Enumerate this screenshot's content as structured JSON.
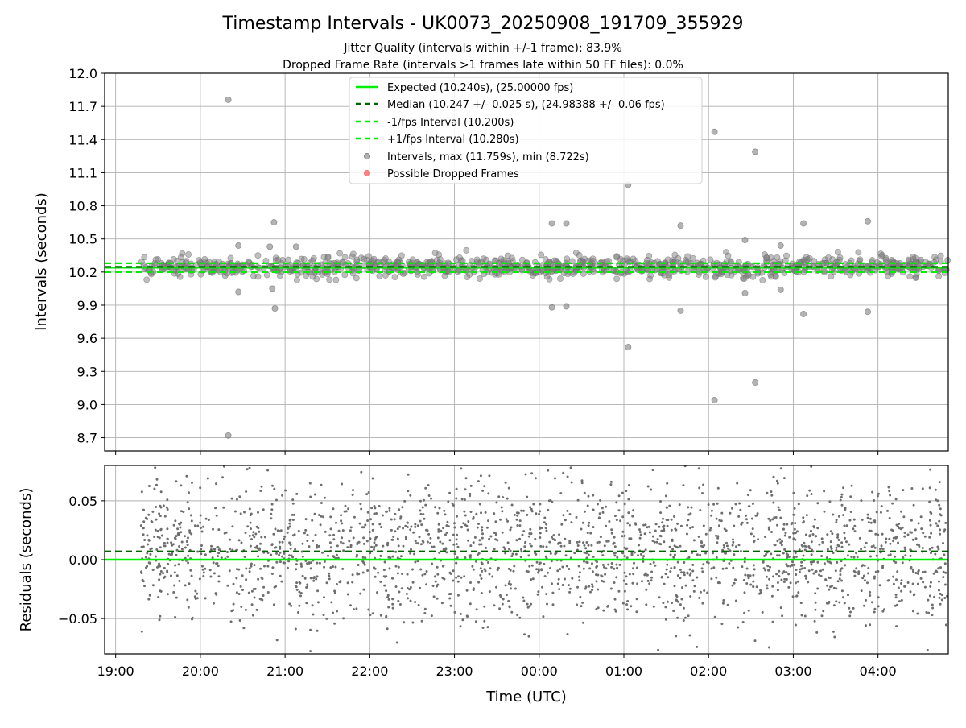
{
  "figure": {
    "title": "Timestamp Intervals - UK0073_20250908_191709_355929",
    "subtitle_1": "Jitter Quality (intervals within +/-1 frame): 83.9%",
    "subtitle_2": "Dropped Frame Rate (intervals >1 frames late within 50 FF files): 0.0%"
  },
  "colors": {
    "expected": "#00ee00",
    "median": "#006400",
    "bounds": "#00ee00",
    "intervals": "#808080",
    "dropped": "#ff4d4d",
    "grid": "#b0b0b0"
  },
  "chart_data": [
    {
      "type": "scatter",
      "panel": "top",
      "ylabel": "Intervals (seconds)",
      "ylim": [
        8.58,
        12.0
      ],
      "xlim_hours": [
        18.87,
        28.83
      ],
      "yticks": [
        "8.7",
        "9.0",
        "9.3",
        "9.6",
        "9.9",
        "10.2",
        "10.5",
        "10.8",
        "11.1",
        "11.4",
        "11.7",
        "12.0"
      ],
      "grid": true,
      "legend_position": "top-center",
      "legend": [
        {
          "label": "Expected (10.240s), (25.00000 fps)",
          "style": "solid",
          "color": "#00ee00"
        },
        {
          "label": "Median (10.247 +/- 0.025 s), (24.98388 +/- 0.06 fps)",
          "style": "dashed",
          "color": "#006400"
        },
        {
          "label": "-1/fps Interval (10.200s)",
          "style": "dashed",
          "color": "#00ee00"
        },
        {
          "label": "+1/fps Interval (10.280s)",
          "style": "dashed",
          "color": "#00ee00"
        },
        {
          "label": "Intervals, max (11.759s), min (8.722s)",
          "style": "marker",
          "color": "#808080"
        },
        {
          "label": "Possible Dropped Frames",
          "style": "marker",
          "color": "#ff4d4d"
        }
      ],
      "lines": {
        "expected": 10.24,
        "median": 10.247,
        "lower": 10.2,
        "upper": 10.28
      },
      "bulk": {
        "start_hour": 19.3,
        "end_hour": 28.83,
        "center": 10.247,
        "spread": 0.045,
        "count": 1000
      },
      "outliers": [
        {
          "x": 20.33,
          "y": 11.76
        },
        {
          "x": 20.33,
          "y": 8.72
        },
        {
          "x": 20.45,
          "y": 10.44
        },
        {
          "x": 20.45,
          "y": 10.02
        },
        {
          "x": 20.82,
          "y": 10.43
        },
        {
          "x": 20.87,
          "y": 10.65
        },
        {
          "x": 20.88,
          "y": 9.87
        },
        {
          "x": 20.85,
          "y": 10.05
        },
        {
          "x": 21.13,
          "y": 10.43
        },
        {
          "x": 24.15,
          "y": 10.64
        },
        {
          "x": 24.15,
          "y": 9.88
        },
        {
          "x": 24.32,
          "y": 10.64
        },
        {
          "x": 24.32,
          "y": 9.89
        },
        {
          "x": 25.05,
          "y": 10.99
        },
        {
          "x": 25.05,
          "y": 9.52
        },
        {
          "x": 25.67,
          "y": 10.62
        },
        {
          "x": 25.67,
          "y": 9.85
        },
        {
          "x": 26.07,
          "y": 11.47
        },
        {
          "x": 26.07,
          "y": 9.04
        },
        {
          "x": 26.43,
          "y": 10.49
        },
        {
          "x": 26.43,
          "y": 10.01
        },
        {
          "x": 26.55,
          "y": 11.29
        },
        {
          "x": 26.55,
          "y": 9.2
        },
        {
          "x": 26.85,
          "y": 10.44
        },
        {
          "x": 26.85,
          "y": 10.04
        },
        {
          "x": 27.12,
          "y": 10.64
        },
        {
          "x": 27.12,
          "y": 9.82
        },
        {
          "x": 27.88,
          "y": 10.66
        },
        {
          "x": 27.88,
          "y": 9.84
        }
      ]
    },
    {
      "type": "scatter",
      "panel": "bottom",
      "xlabel": "Time (UTC)",
      "ylabel": "Residuals (seconds)",
      "ylim": [
        -0.08,
        0.08
      ],
      "yticks": [
        "−0.05",
        "0.00",
        "0.05"
      ],
      "xticks": [
        "19:00",
        "20:00",
        "21:00",
        "22:00",
        "23:00",
        "00:00",
        "01:00",
        "02:00",
        "03:00",
        "04:00"
      ],
      "grid": true,
      "lines": {
        "expected": 0.0,
        "median": 0.007
      },
      "bulk": {
        "start_hour": 19.3,
        "end_hour": 28.83,
        "center": 0.007,
        "spread": 0.03,
        "count": 2200
      }
    }
  ]
}
